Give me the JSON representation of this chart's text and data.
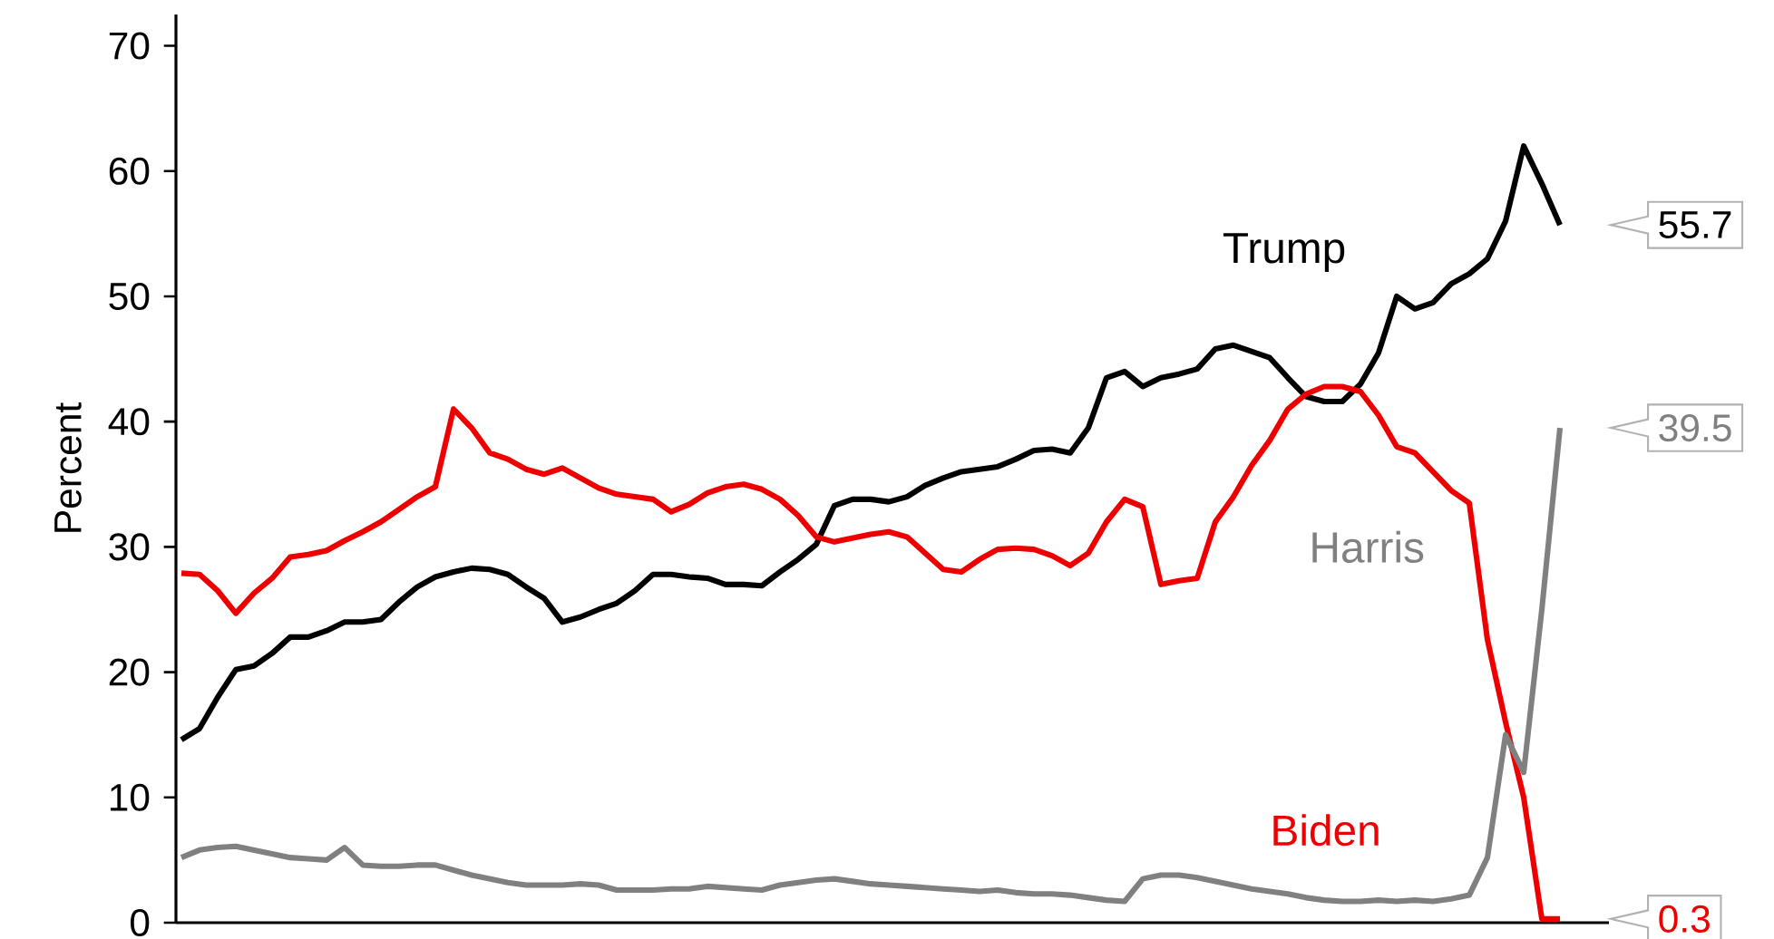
{
  "chart_data": {
    "type": "line",
    "ylabel": "Percent",
    "ylim": [
      0,
      72.5
    ],
    "yticks": [
      0,
      10,
      20,
      30,
      40,
      50,
      60,
      70
    ],
    "categories": [
      null,
      null,
      null,
      null,
      null,
      null,
      null,
      null,
      null,
      null,
      null,
      null,
      null,
      null,
      null,
      null,
      null,
      null,
      null,
      null,
      null,
      null,
      null,
      null,
      null,
      null,
      null,
      null,
      null,
      null,
      null,
      null,
      null,
      null,
      null,
      null,
      null,
      null,
      null,
      null,
      null,
      null,
      null,
      null,
      null,
      null,
      null,
      null,
      null,
      null,
      null,
      null,
      null,
      null,
      null,
      null,
      null,
      null,
      null,
      null,
      null,
      null,
      null,
      null,
      null,
      null,
      null,
      null,
      null,
      null,
      null,
      null,
      null,
      null,
      null,
      null,
      null
    ],
    "series": [
      {
        "name": "Trump",
        "color": "#000000",
        "values": [
          14.6,
          15.5,
          18,
          20.2,
          20.5,
          21.5,
          22.8,
          22.8,
          23.3,
          24.0,
          24.0,
          24.2,
          25.6,
          26.8,
          27.6,
          28.0,
          28.3,
          28.2,
          27.8,
          26.8,
          25.9,
          24.0,
          24.4,
          25.0,
          25.5,
          26.5,
          27.8,
          27.8,
          27.6,
          27.5,
          27.0,
          27.0,
          26.9,
          28.0,
          29.0,
          30.2,
          33.3,
          33.8,
          33.8,
          33.6,
          34.0,
          34.9,
          35.5,
          36.0,
          36.2,
          36.4,
          37.0,
          37.7,
          37.8,
          37.5,
          39.5,
          43.5,
          44.0,
          42.8,
          43.5,
          43.8,
          44.2,
          45.8,
          46.1,
          45.6,
          45.1,
          43.5,
          42.0,
          41.6,
          41.6,
          43.0,
          45.5,
          50.0,
          49.0,
          49.5,
          51.0,
          51.8,
          53.0,
          56.0,
          62.0,
          59.0,
          55.7
        ]
      },
      {
        "name": "Biden",
        "color": "#ee0000",
        "values": [
          27.9,
          27.8,
          26.5,
          24.7,
          26.3,
          27.5,
          29.2,
          29.4,
          29.7,
          30.5,
          31.2,
          32.0,
          33.0,
          34.0,
          34.8,
          41.0,
          39.5,
          37.5,
          37.0,
          36.2,
          35.8,
          36.3,
          35.5,
          34.7,
          34.2,
          34.0,
          33.8,
          32.8,
          33.4,
          34.3,
          34.8,
          35.0,
          34.6,
          33.8,
          32.5,
          30.8,
          30.4,
          30.7,
          31.0,
          31.2,
          30.8,
          29.5,
          28.2,
          28.0,
          29.0,
          29.8,
          29.9,
          29.8,
          29.3,
          28.5,
          29.5,
          32.0,
          33.8,
          33.2,
          27.0,
          27.3,
          27.5,
          32.0,
          34.0,
          36.5,
          38.5,
          41.0,
          42.2,
          42.8,
          42.8,
          42.4,
          40.5,
          38.0,
          37.5,
          36.0,
          34.5,
          33.5,
          22.6,
          16,
          10,
          0.3,
          0.3
        ]
      },
      {
        "name": "Harris",
        "color": "#808080",
        "values": [
          5.2,
          5.8,
          6.0,
          6.1,
          5.8,
          5.5,
          5.2,
          5.1,
          5.0,
          6.0,
          4.6,
          4.5,
          4.5,
          4.6,
          4.6,
          4.2,
          3.8,
          3.5,
          3.2,
          3.0,
          3.0,
          3.0,
          3.1,
          3.0,
          2.6,
          2.6,
          2.6,
          2.7,
          2.7,
          2.9,
          2.8,
          2.7,
          2.6,
          3.0,
          3.2,
          3.4,
          3.5,
          3.3,
          3.1,
          3.0,
          2.9,
          2.8,
          2.7,
          2.6,
          2.5,
          2.6,
          2.4,
          2.3,
          2.3,
          2.2,
          2.0,
          1.8,
          1.7,
          3.5,
          3.8,
          3.8,
          3.6,
          3.3,
          3.0,
          2.7,
          2.5,
          2.3,
          2.0,
          1.8,
          1.7,
          1.7,
          1.8,
          1.7,
          1.8,
          1.7,
          1.9,
          2.2,
          5.2,
          15,
          12,
          25,
          39.5
        ]
      }
    ],
    "annotations": [
      "55.7",
      "0.3",
      "39.5"
    ],
    "legend": false
  }
}
